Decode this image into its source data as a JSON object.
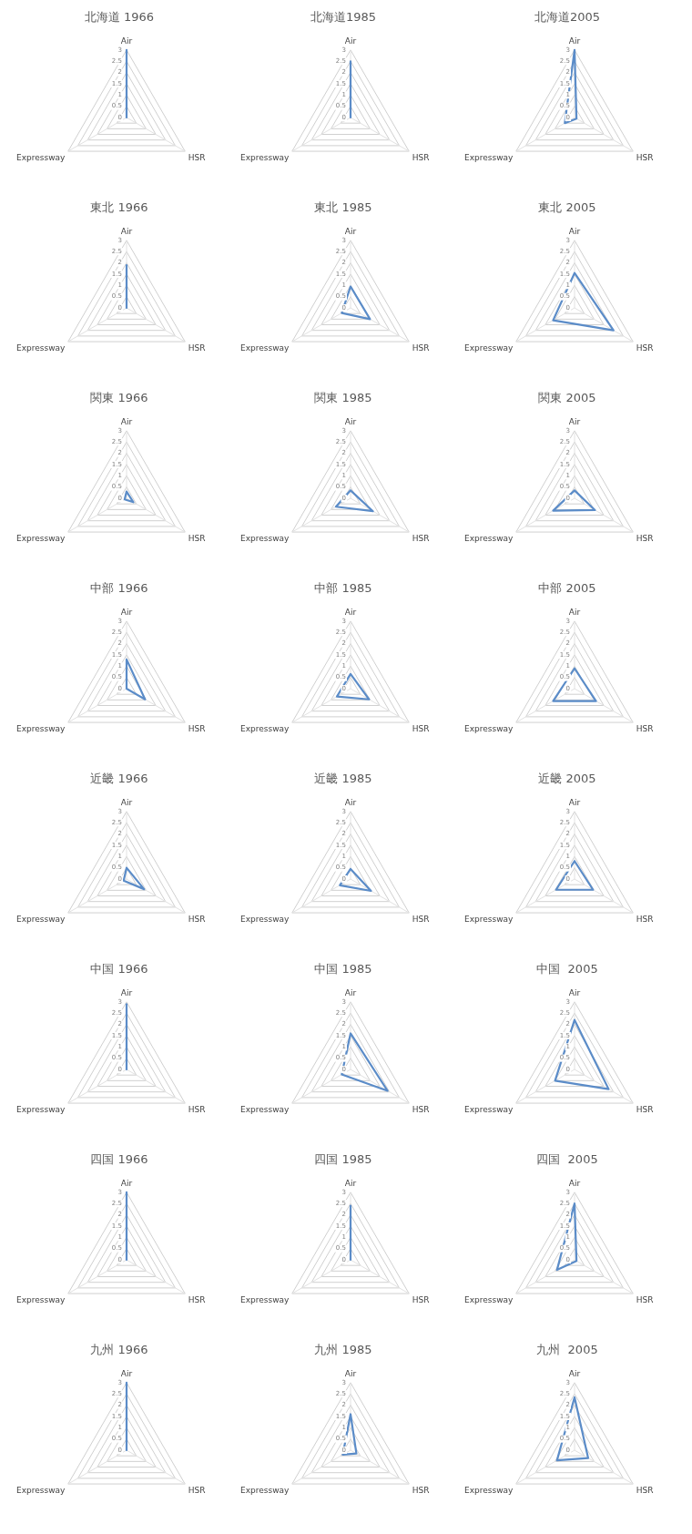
{
  "chart_data": [
    {
      "type": "radar",
      "title": "北海道 1966",
      "categories": [
        "Air",
        "HSR",
        "Expressway"
      ],
      "series": [
        {
          "color": "#5b8cc8",
          "values": [
            3,
            0,
            0
          ]
        }
      ],
      "ylim": [
        0,
        3
      ],
      "yticks": [
        0,
        0.5,
        1,
        1.5,
        2,
        2.5,
        3
      ],
      "grid": true,
      "marker": "none"
    },
    {
      "type": "radar",
      "title": "北海道1985",
      "categories": [
        "Air",
        "HSR",
        "Expressway"
      ],
      "series": [
        {
          "color": "#5b8cc8",
          "values": [
            2.5,
            0,
            0
          ]
        }
      ],
      "ylim": [
        0,
        3
      ],
      "yticks": [
        0,
        0.5,
        1,
        1.5,
        2,
        2.5,
        3
      ],
      "grid": true,
      "marker": "none"
    },
    {
      "type": "radar",
      "title": "北海道2005",
      "categories": [
        "Air",
        "HSR",
        "Expressway"
      ],
      "series": [
        {
          "color": "#5b8cc8",
          "values": [
            3,
            0.1,
            0.5
          ]
        }
      ],
      "ylim": [
        0,
        3
      ],
      "yticks": [
        0,
        0.5,
        1,
        1.5,
        2,
        2.5,
        3
      ],
      "grid": true,
      "marker": "none"
    },
    {
      "type": "radar",
      "title": "東北 1966",
      "categories": [
        "Air",
        "HSR",
        "Expressway"
      ],
      "series": [
        {
          "color": "#5b8cc8",
          "values": [
            1.9,
            0,
            0
          ]
        }
      ],
      "ylim": [
        0,
        3
      ],
      "yticks": [
        0,
        0.5,
        1,
        1.5,
        2,
        2.5,
        3
      ],
      "grid": true,
      "marker": "none"
    },
    {
      "type": "radar",
      "title": "東北 1985",
      "categories": [
        "Air",
        "HSR",
        "Expressway"
      ],
      "series": [
        {
          "color": "#5b8cc8",
          "values": [
            0.95,
            1,
            0.45
          ]
        }
      ],
      "ylim": [
        0,
        3
      ],
      "yticks": [
        0,
        0.5,
        1,
        1.5,
        2,
        2.5,
        3
      ],
      "grid": true,
      "marker": "none"
    },
    {
      "type": "radar",
      "title": "東北 2005",
      "categories": [
        "Air",
        "HSR",
        "Expressway"
      ],
      "series": [
        {
          "color": "#5b8cc8",
          "values": [
            1.55,
            2,
            1.1
          ]
        }
      ],
      "ylim": [
        0,
        3
      ],
      "yticks": [
        0,
        0.5,
        1,
        1.5,
        2,
        2.5,
        3
      ],
      "grid": true,
      "marker": "none"
    },
    {
      "type": "radar",
      "title": "関東 1966",
      "categories": [
        "Air",
        "HSR",
        "Expressway"
      ],
      "series": [
        {
          "color": "#5b8cc8",
          "values": [
            0.3,
            0.35,
            0.1
          ]
        }
      ],
      "ylim": [
        0,
        3
      ],
      "yticks": [
        0,
        0.5,
        1,
        1.5,
        2,
        2.5,
        3
      ],
      "grid": true,
      "marker": "none"
    },
    {
      "type": "radar",
      "title": "関東 1985",
      "categories": [
        "Air",
        "HSR",
        "Expressway"
      ],
      "series": [
        {
          "color": "#5b8cc8",
          "values": [
            0.35,
            1.15,
            0.75
          ]
        }
      ],
      "ylim": [
        0,
        3
      ],
      "yticks": [
        0,
        0.5,
        1,
        1.5,
        2,
        2.5,
        3
      ],
      "grid": true,
      "marker": "none"
    },
    {
      "type": "radar",
      "title": "関東 2005",
      "categories": [
        "Air",
        "HSR",
        "Expressway"
      ],
      "series": [
        {
          "color": "#5b8cc8",
          "values": [
            0.35,
            1.05,
            1.1
          ]
        }
      ],
      "ylim": [
        0,
        3
      ],
      "yticks": [
        0,
        0.5,
        1,
        1.5,
        2,
        2.5,
        3
      ],
      "grid": true,
      "marker": "none"
    },
    {
      "type": "radar",
      "title": "中部 1966",
      "categories": [
        "Air",
        "HSR",
        "Expressway"
      ],
      "series": [
        {
          "color": "#5b8cc8",
          "values": [
            1.3,
            0.95,
            0
          ]
        }
      ],
      "ylim": [
        0,
        3
      ],
      "yticks": [
        0,
        0.5,
        1,
        1.5,
        2,
        2.5,
        3
      ],
      "grid": true,
      "marker": "none"
    },
    {
      "type": "radar",
      "title": "中部 1985",
      "categories": [
        "Air",
        "HSR",
        "Expressway"
      ],
      "series": [
        {
          "color": "#5b8cc8",
          "values": [
            0.65,
            0.95,
            0.7
          ]
        }
      ],
      "ylim": [
        0,
        3
      ],
      "yticks": [
        0,
        0.5,
        1,
        1.5,
        2,
        2.5,
        3
      ],
      "grid": true,
      "marker": "none"
    },
    {
      "type": "radar",
      "title": "中部 2005",
      "categories": [
        "Air",
        "HSR",
        "Expressway"
      ],
      "series": [
        {
          "color": "#5b8cc8",
          "values": [
            0.9,
            1.1,
            1.1
          ]
        }
      ],
      "ylim": [
        0,
        3
      ],
      "yticks": [
        0,
        0.5,
        1,
        1.5,
        2,
        2.5,
        3
      ],
      "grid": true,
      "marker": "none"
    },
    {
      "type": "radar",
      "title": "近畿 1966",
      "categories": [
        "Air",
        "HSR",
        "Expressway"
      ],
      "series": [
        {
          "color": "#5b8cc8",
          "values": [
            0.5,
            0.9,
            0.15
          ]
        }
      ],
      "ylim": [
        0,
        3
      ],
      "yticks": [
        0,
        0.5,
        1,
        1.5,
        2,
        2.5,
        3
      ],
      "grid": true,
      "marker": "none"
    },
    {
      "type": "radar",
      "title": "近畿 1985",
      "categories": [
        "Air",
        "HSR",
        "Expressway"
      ],
      "series": [
        {
          "color": "#5b8cc8",
          "values": [
            0.45,
            1.05,
            0.55
          ]
        }
      ],
      "ylim": [
        0,
        3
      ],
      "yticks": [
        0,
        0.5,
        1,
        1.5,
        2,
        2.5,
        3
      ],
      "grid": true,
      "marker": "none"
    },
    {
      "type": "radar",
      "title": "近畿 2005",
      "categories": [
        "Air",
        "HSR",
        "Expressway"
      ],
      "series": [
        {
          "color": "#5b8cc8",
          "values": [
            0.8,
            0.95,
            0.95
          ]
        }
      ],
      "ylim": [
        0,
        3
      ],
      "yticks": [
        0,
        0.5,
        1,
        1.5,
        2,
        2.5,
        3
      ],
      "grid": true,
      "marker": "none"
    },
    {
      "type": "radar",
      "title": "中国 1966",
      "categories": [
        "Air",
        "HSR",
        "Expressway"
      ],
      "series": [
        {
          "color": "#5b8cc8",
          "values": [
            2.9,
            0,
            0
          ]
        }
      ],
      "ylim": [
        0,
        3
      ],
      "yticks": [
        0,
        0.5,
        1,
        1.5,
        2,
        2.5,
        3
      ],
      "grid": true,
      "marker": "none"
    },
    {
      "type": "radar",
      "title": "中国 1985",
      "categories": [
        "Air",
        "HSR",
        "Expressway"
      ],
      "series": [
        {
          "color": "#5b8cc8",
          "values": [
            1.6,
            1.9,
            0.45
          ]
        }
      ],
      "ylim": [
        0,
        3
      ],
      "yticks": [
        0,
        0.5,
        1,
        1.5,
        2,
        2.5,
        3
      ],
      "grid": true,
      "marker": "none"
    },
    {
      "type": "radar",
      "title": "中国  2005",
      "categories": [
        "Air",
        "HSR",
        "Expressway"
      ],
      "series": [
        {
          "color": "#5b8cc8",
          "values": [
            2.2,
            1.75,
            1
          ]
        }
      ],
      "ylim": [
        0,
        3
      ],
      "yticks": [
        0,
        0.5,
        1,
        1.5,
        2,
        2.5,
        3
      ],
      "grid": true,
      "marker": "none"
    },
    {
      "type": "radar",
      "title": "四国 1966",
      "categories": [
        "Air",
        "HSR",
        "Expressway"
      ],
      "series": [
        {
          "color": "#5b8cc8",
          "values": [
            3,
            0,
            0
          ]
        }
      ],
      "ylim": [
        0,
        3
      ],
      "yticks": [
        0,
        0.5,
        1,
        1.5,
        2,
        2.5,
        3
      ],
      "grid": true,
      "marker": "none"
    },
    {
      "type": "radar",
      "title": "四国 1985",
      "categories": [
        "Air",
        "HSR",
        "Expressway"
      ],
      "series": [
        {
          "color": "#5b8cc8",
          "values": [
            2.4,
            0,
            0
          ]
        }
      ],
      "ylim": [
        0,
        3
      ],
      "yticks": [
        0,
        0.5,
        1,
        1.5,
        2,
        2.5,
        3
      ],
      "grid": true,
      "marker": "none"
    },
    {
      "type": "radar",
      "title": "四国  2005",
      "categories": [
        "Air",
        "HSR",
        "Expressway"
      ],
      "series": [
        {
          "color": "#5b8cc8",
          "values": [
            2.5,
            0.1,
            0.9
          ]
        }
      ],
      "ylim": [
        0,
        3
      ],
      "yticks": [
        0,
        0.5,
        1,
        1.5,
        2,
        2.5,
        3
      ],
      "grid": true,
      "marker": "none"
    },
    {
      "type": "radar",
      "title": "九州 1966",
      "categories": [
        "Air",
        "HSR",
        "Expressway"
      ],
      "series": [
        {
          "color": "#5b8cc8",
          "values": [
            3,
            0,
            0
          ]
        }
      ],
      "ylim": [
        0,
        3
      ],
      "yticks": [
        0,
        0.5,
        1,
        1.5,
        2,
        2.5,
        3
      ],
      "grid": true,
      "marker": "none"
    },
    {
      "type": "radar",
      "title": "九州 1985",
      "categories": [
        "Air",
        "HSR",
        "Expressway"
      ],
      "series": [
        {
          "color": "#5b8cc8",
          "values": [
            1.6,
            0.3,
            0.4
          ]
        }
      ],
      "ylim": [
        0,
        3
      ],
      "yticks": [
        0,
        0.5,
        1,
        1.5,
        2,
        2.5,
        3
      ],
      "grid": true,
      "marker": "none"
    },
    {
      "type": "radar",
      "title": "九州  2005",
      "categories": [
        "Air",
        "HSR",
        "Expressway"
      ],
      "series": [
        {
          "color": "#5b8cc8",
          "values": [
            2.35,
            0.7,
            0.9
          ]
        }
      ],
      "ylim": [
        0,
        3
      ],
      "yticks": [
        0,
        0.5,
        1,
        1.5,
        2,
        2.5,
        3
      ],
      "grid": true,
      "marker": "none"
    }
  ]
}
